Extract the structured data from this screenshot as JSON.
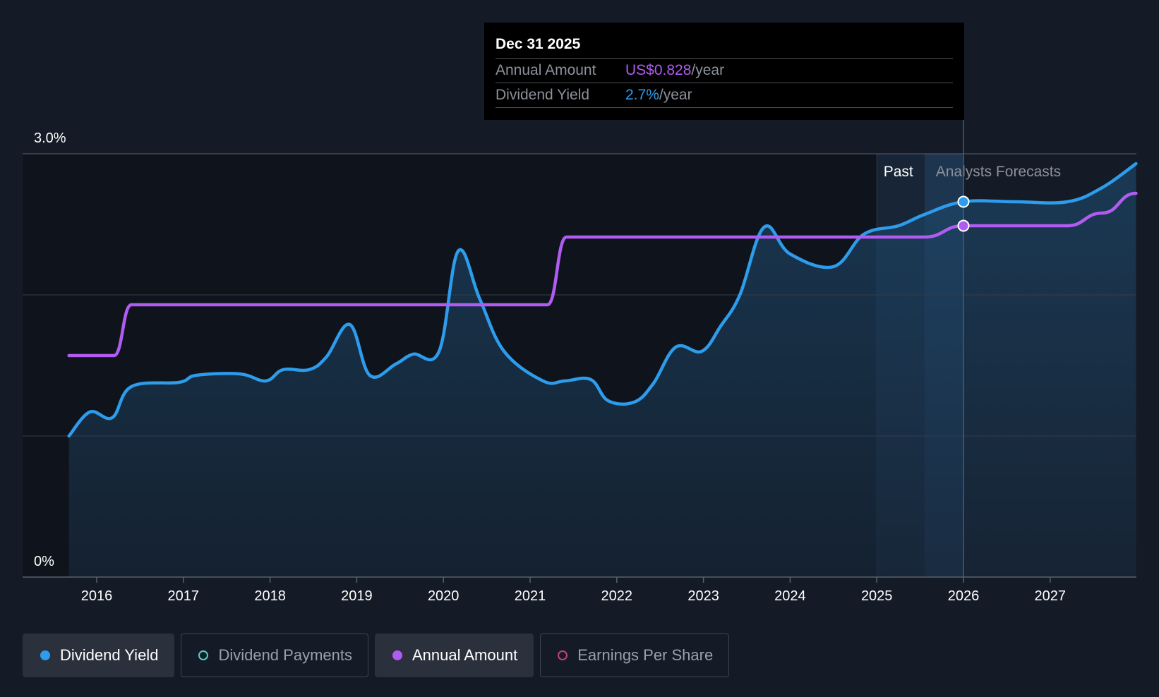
{
  "chart_data": {
    "type": "line",
    "y_ticks": [
      "3.0%",
      "0%"
    ],
    "ylim": [
      0,
      3.0
    ],
    "x_ticks": [
      "2016",
      "2017",
      "2018",
      "2019",
      "2020",
      "2021",
      "2022",
      "2023",
      "2024",
      "2025",
      "2026",
      "2027"
    ],
    "xlim": [
      2015.68,
      2027.99
    ],
    "grid": true,
    "regions": {
      "past_label": "Past",
      "forecast_label": "Analysts Forecasts"
    },
    "series": [
      {
        "name": "Dividend Yield",
        "color": "#2e9cec",
        "points": [
          [
            2015.68,
            1.0
          ],
          [
            2015.92,
            1.17
          ],
          [
            2016.18,
            1.13
          ],
          [
            2016.4,
            1.35
          ],
          [
            2016.95,
            1.38
          ],
          [
            2017.15,
            1.43
          ],
          [
            2017.65,
            1.44
          ],
          [
            2017.95,
            1.39
          ],
          [
            2018.15,
            1.47
          ],
          [
            2018.45,
            1.47
          ],
          [
            2018.65,
            1.56
          ],
          [
            2018.92,
            1.79
          ],
          [
            2019.15,
            1.43
          ],
          [
            2019.45,
            1.51
          ],
          [
            2019.65,
            1.58
          ],
          [
            2019.95,
            1.6
          ],
          [
            2020.17,
            2.31
          ],
          [
            2020.42,
            1.97
          ],
          [
            2020.7,
            1.6
          ],
          [
            2021.15,
            1.39
          ],
          [
            2021.4,
            1.39
          ],
          [
            2021.7,
            1.4
          ],
          [
            2021.9,
            1.25
          ],
          [
            2022.2,
            1.24
          ],
          [
            2022.42,
            1.37
          ],
          [
            2022.68,
            1.63
          ],
          [
            2022.98,
            1.6
          ],
          [
            2023.2,
            1.78
          ],
          [
            2023.42,
            2.0
          ],
          [
            2023.7,
            2.48
          ],
          [
            2024.0,
            2.29
          ],
          [
            2024.5,
            2.2
          ],
          [
            2024.85,
            2.43
          ],
          [
            2025.25,
            2.49
          ],
          [
            2025.55,
            2.57
          ],
          [
            2026.0,
            2.66
          ],
          [
            2026.6,
            2.66
          ],
          [
            2027.2,
            2.66
          ],
          [
            2027.6,
            2.76
          ],
          [
            2027.99,
            2.93
          ]
        ]
      },
      {
        "name": "Annual Amount",
        "color": "#b05cf0",
        "points": [
          [
            2015.68,
            1.57
          ],
          [
            2016.2,
            1.57
          ],
          [
            2016.4,
            1.93
          ],
          [
            2021.2,
            1.93
          ],
          [
            2021.42,
            2.41
          ],
          [
            2025.55,
            2.41
          ],
          [
            2026.0,
            2.49
          ],
          [
            2026.6,
            2.49
          ],
          [
            2027.2,
            2.49
          ],
          [
            2027.6,
            2.58
          ],
          [
            2027.99,
            2.72
          ]
        ]
      }
    ],
    "tooltip": {
      "date": "Dec 31 2025",
      "x": 2026.0,
      "rows": [
        {
          "label": "Annual Amount",
          "value": "US$0.828",
          "unit": "/year",
          "color": "#b05cf0"
        },
        {
          "label": "Dividend Yield",
          "value": "2.7%",
          "unit": "/year",
          "color": "#2e9cec"
        }
      ]
    }
  },
  "legend": [
    {
      "label": "Dividend Yield",
      "color": "#2e9cec",
      "active": true
    },
    {
      "label": "Dividend Payments",
      "color": "#4fd1c5",
      "active": false
    },
    {
      "label": "Annual Amount",
      "color": "#b05cf0",
      "active": true
    },
    {
      "label": "Earnings Per Share",
      "color": "#c2417a",
      "active": false
    }
  ]
}
